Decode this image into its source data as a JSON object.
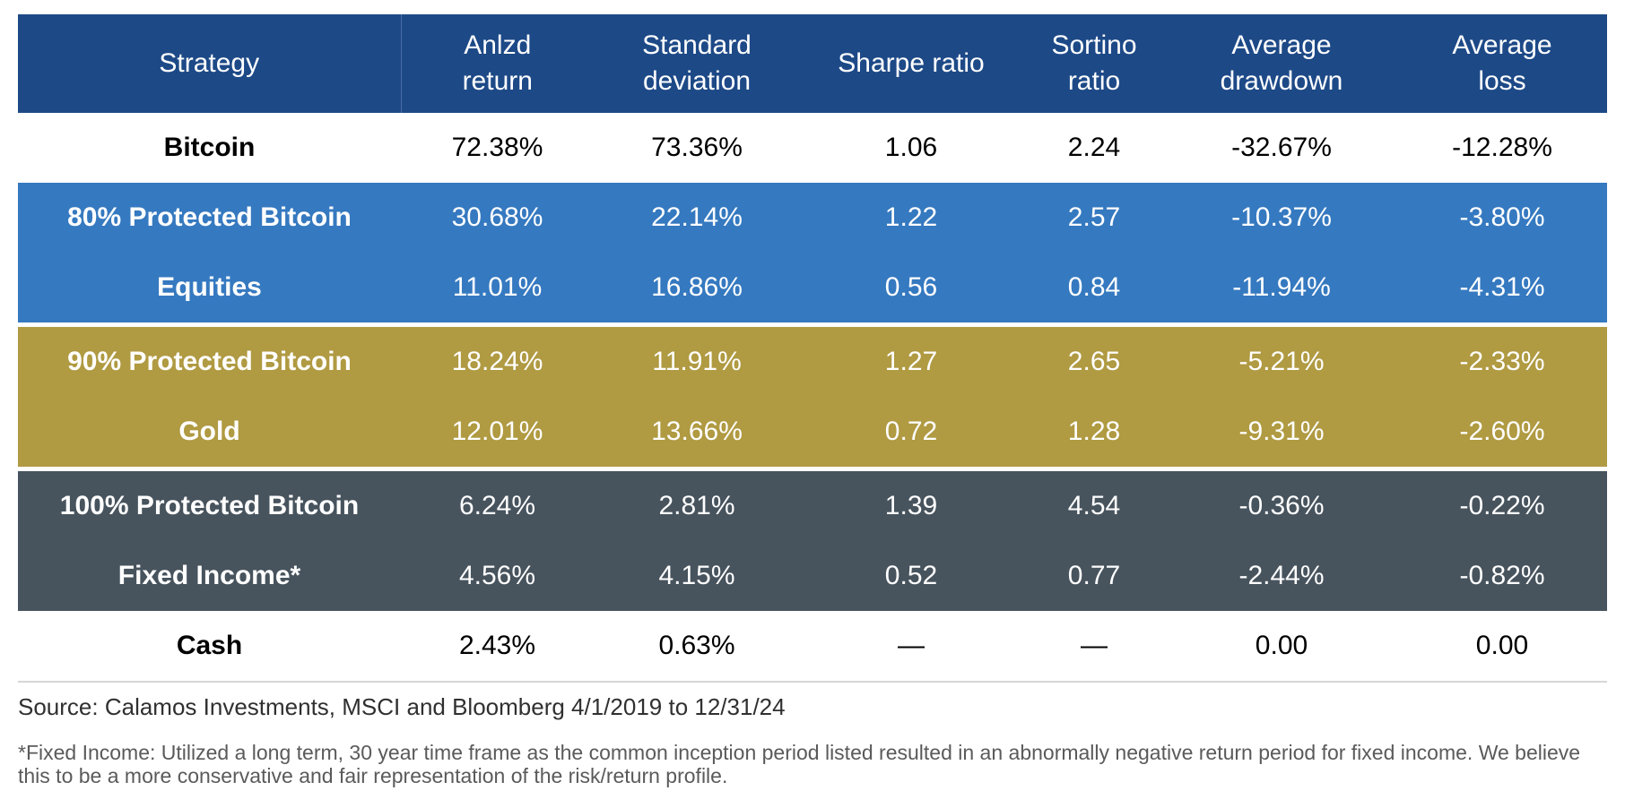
{
  "table": {
    "headers": {
      "strategy": "Strategy",
      "return_l1": "Anlzd",
      "return_l2": "return",
      "std_l1": "Standard",
      "std_l2": "deviation",
      "sharpe": "Sharpe ratio",
      "sortino_l1": "Sortino",
      "sortino_l2": "ratio",
      "drawdown_l1": "Average",
      "drawdown_l2": "drawdown",
      "loss_l1": "Average",
      "loss_l2": "loss"
    },
    "rows": [
      {
        "strategy": "Bitcoin",
        "return": "72.38%",
        "std": "73.36%",
        "sharpe": "1.06",
        "sortino": "2.24",
        "drawdown": "-32.67%",
        "loss": "-12.28%"
      },
      {
        "strategy": "80% Protected Bitcoin",
        "return": "30.68%",
        "std": "22.14%",
        "sharpe": "1.22",
        "sortino": "2.57",
        "drawdown": "-10.37%",
        "loss": "-3.80%"
      },
      {
        "strategy": "Equities",
        "return": "11.01%",
        "std": "16.86%",
        "sharpe": "0.56",
        "sortino": "0.84",
        "drawdown": "-11.94%",
        "loss": "-4.31%"
      },
      {
        "strategy": "90% Protected Bitcoin",
        "return": "18.24%",
        "std": "11.91%",
        "sharpe": "1.27",
        "sortino": "2.65",
        "drawdown": "-5.21%",
        "loss": "-2.33%"
      },
      {
        "strategy": "Gold",
        "return": "12.01%",
        "std": "13.66%",
        "sharpe": "0.72",
        "sortino": "1.28",
        "drawdown": "-9.31%",
        "loss": "-2.60%"
      },
      {
        "strategy": "100% Protected Bitcoin",
        "return": "6.24%",
        "std": "2.81%",
        "sharpe": "1.39",
        "sortino": "4.54",
        "drawdown": "-0.36%",
        "loss": "-0.22%"
      },
      {
        "strategy": "Fixed Income*",
        "return": "4.56%",
        "std": "4.15%",
        "sharpe": "0.52",
        "sortino": "0.77",
        "drawdown": "-2.44%",
        "loss": "-0.82%"
      },
      {
        "strategy": "Cash",
        "return": "2.43%",
        "std": "0.63%",
        "sharpe": "—",
        "sortino": "—",
        "drawdown": "0.00",
        "loss": "0.00"
      }
    ]
  },
  "colors": {
    "header": "#1d4987",
    "blue_group": "#3579c0",
    "gold_group": "#b09a42",
    "slate_group": "#47535d"
  },
  "notes": {
    "source": "Source: Calamos Investments, MSCI and Bloomberg 4/1/2019 to 12/31/24",
    "footnote": "*Fixed Income: Utilized a long term, 30 year time frame as the common inception period listed resulted in an abnormally negative return period for fixed income. We believe this to be a more conservative and fair representation of the risk/return profile."
  }
}
